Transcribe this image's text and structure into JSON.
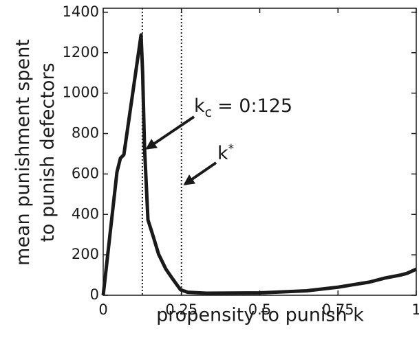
{
  "chart_data": {
    "type": "line",
    "ylabel": [
      "mean punishment spent",
      "to punish defectors"
    ],
    "xlabel": "propensity to punish k",
    "x": [
      0,
      0.044,
      0.055,
      0.066,
      0.121,
      0.126,
      0.132,
      0.143,
      0.16,
      0.177,
      0.2,
      0.22,
      0.247,
      0.27,
      0.33,
      0.5,
      0.65,
      0.75,
      0.85,
      0.9,
      0.95,
      0.97,
      0.99,
      1.0
    ],
    "series": [
      {
        "name": "mean punishment",
        "color": "#1a1a1a",
        "values": [
          0,
          610,
          678,
          695,
          1288,
          1100,
          729,
          373,
          290,
          203,
          130,
          85,
          27,
          15,
          10,
          12,
          22,
          40,
          65,
          85,
          100,
          108,
          122,
          129
        ]
      }
    ],
    "xlim": [
      0,
      1
    ],
    "ylim": [
      0,
      1420
    ],
    "xticks": [
      0,
      0.25,
      0.5,
      0.75,
      1
    ],
    "yticks": [
      0,
      200,
      400,
      600,
      800,
      1000,
      1200,
      1400
    ],
    "vlines": [
      0.125,
      0.25
    ],
    "annotations": [
      {
        "base": "k",
        "sub": "c",
        "rest": "= 0:125"
      },
      {
        "base": "k",
        "sup": "*"
      }
    ]
  }
}
